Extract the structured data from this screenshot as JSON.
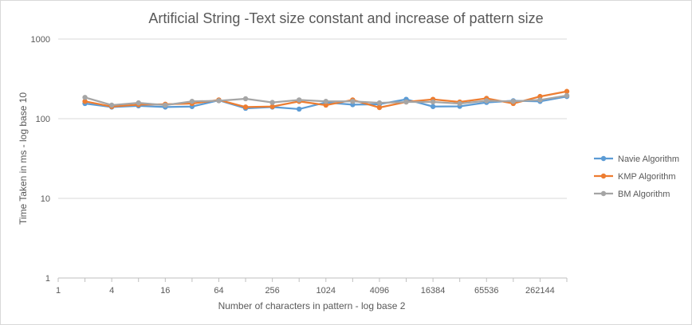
{
  "chart_data": {
    "type": "line",
    "title": "Artificial String -Text size constant and increase of pattern size",
    "xlabel": "Number  of characters in pattern - log base 2",
    "ylabel": "Time Taken in ms - log base 10",
    "x_scale": "log2",
    "y_scale": "log10",
    "xlim": [
      1,
      524288
    ],
    "ylim": [
      1,
      1000
    ],
    "x_tick_labels": [
      "1",
      "4",
      "16",
      "64",
      "256",
      "1024",
      "4096",
      "16384",
      "65536",
      "262144"
    ],
    "y_tick_labels": [
      "1",
      "10",
      "100",
      "1000"
    ],
    "x": [
      2,
      4,
      8,
      16,
      32,
      64,
      128,
      256,
      512,
      1024,
      2048,
      4096,
      8192,
      16384,
      32768,
      65536,
      131072,
      262144,
      524288
    ],
    "series": [
      {
        "name": "Navie Algorithm",
        "color": "#5b9bd5",
        "values": [
          155,
          140,
          145,
          140,
          142,
          170,
          135,
          140,
          132,
          160,
          150,
          152,
          175,
          142,
          143,
          160,
          168,
          165,
          190
        ]
      },
      {
        "name": "KMP Algorithm",
        "color": "#ed7d31",
        "values": [
          165,
          142,
          150,
          152,
          155,
          172,
          140,
          142,
          165,
          148,
          172,
          138,
          162,
          175,
          162,
          180,
          155,
          190,
          220
        ]
      },
      {
        "name": "BM Algorithm",
        "color": "#a5a5a5",
        "values": [
          185,
          148,
          158,
          148,
          165,
          168,
          178,
          160,
          172,
          165,
          165,
          158,
          162,
          162,
          155,
          168,
          165,
          172,
          195
        ]
      }
    ],
    "grid": true,
    "legend_position": "right"
  }
}
